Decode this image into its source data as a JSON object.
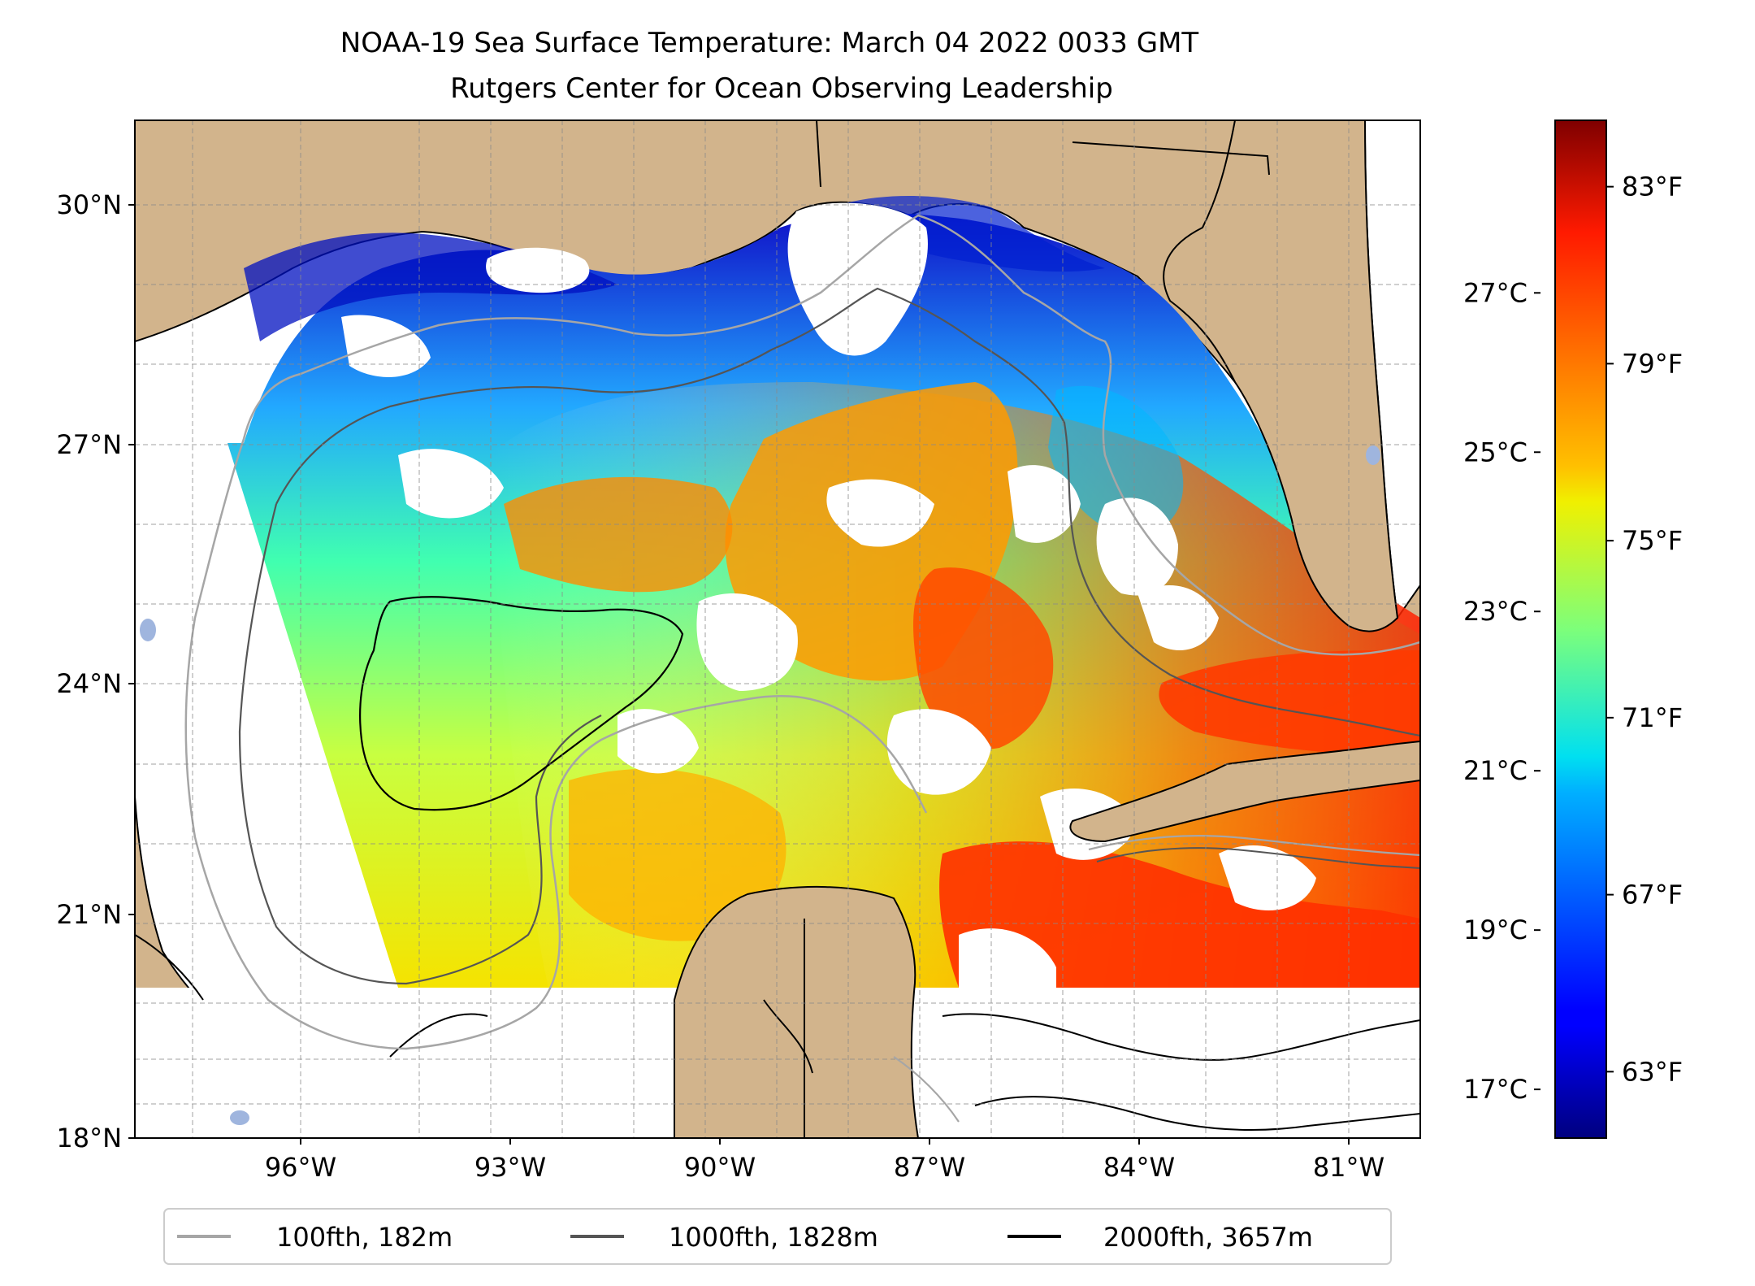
{
  "title_line1": "NOAA-19 Sea Surface Temperature: March 04 2022 0033 GMT",
  "title_line2": "Rutgers Center for Ocean Observing Leadership",
  "lat_ticks": [
    {
      "value": 30,
      "label": "30°N"
    },
    {
      "value": 27,
      "label": "27°N"
    },
    {
      "value": 24,
      "label": "24°N"
    },
    {
      "value": 21,
      "label": "21°N"
    },
    {
      "value": 18,
      "label": "18°N"
    }
  ],
  "lon_ticks": [
    {
      "value": -96,
      "label": "96°W"
    },
    {
      "value": -93,
      "label": "93°W"
    },
    {
      "value": -90,
      "label": "90°W"
    },
    {
      "value": -87,
      "label": "87°W"
    },
    {
      "value": -84,
      "label": "84°W"
    },
    {
      "value": -81,
      "label": "81°W"
    }
  ],
  "colorbar": {
    "celsius": [
      {
        "value": 27,
        "label": "27°C"
      },
      {
        "value": 25,
        "label": "25°C"
      },
      {
        "value": 23,
        "label": "23°C"
      },
      {
        "value": 21,
        "label": "21°C"
      },
      {
        "value": 19,
        "label": "19°C"
      },
      {
        "value": 17,
        "label": "17°C"
      }
    ],
    "fahrenheit": [
      {
        "value": 83,
        "label": "83°F"
      },
      {
        "value": 79,
        "label": "79°F"
      },
      {
        "value": 75,
        "label": "75°F"
      },
      {
        "value": 71,
        "label": "71°F"
      },
      {
        "value": 67,
        "label": "67°F"
      },
      {
        "value": 63,
        "label": "63°F"
      }
    ],
    "colormap": "jet"
  },
  "legend": [
    {
      "label": "100fth, 182m",
      "color": "#a6a6a6"
    },
    {
      "label": "1000fth, 1828m",
      "color": "#555555"
    },
    {
      "label": "2000fth, 3657m",
      "color": "#000000"
    }
  ],
  "colors": {
    "land": "#d2b48c",
    "no_data": "#ffffff",
    "water_body": "#9fb5de"
  }
}
